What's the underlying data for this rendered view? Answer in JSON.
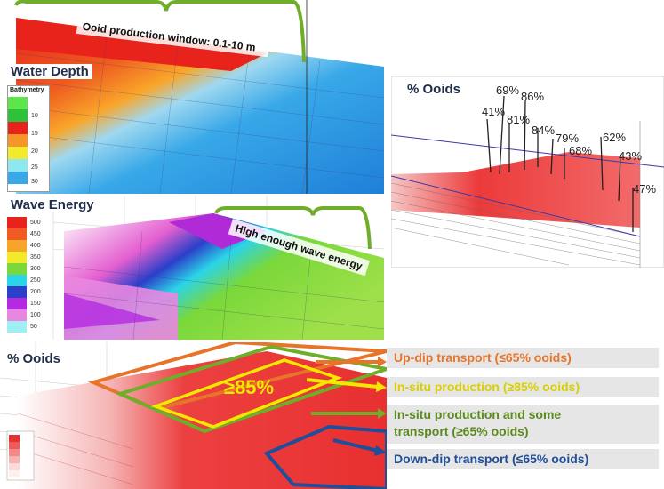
{
  "panels": {
    "water_depth": {
      "title": "Water Depth",
      "legend_title": "Bathymetry",
      "legend_ticks": [
        "10",
        "15",
        "20",
        "25",
        "30"
      ],
      "annotation": "Ooid production window: 0.1-10 m"
    },
    "wave_energy": {
      "title": "Wave Energy",
      "legend_values": [
        "500",
        "450",
        "400",
        "350",
        "300",
        "250",
        "200",
        "150",
        "100",
        "50"
      ],
      "annotation": "High enough wave energy"
    },
    "ooids_map": {
      "title": "% Ooids",
      "center_label": "≥85%"
    },
    "ooids_section": {
      "title": "% Ooids",
      "well_values": [
        "41%",
        "69%",
        "81%",
        "86%",
        "84%",
        "79%",
        "68%",
        "62%",
        "43%",
        "47%"
      ]
    }
  },
  "callouts": {
    "updip": "Up-dip transport (≤65% ooids)",
    "insitu": "In-situ production (≥85% ooids)",
    "insitu_transport_1": "In-situ production and some",
    "insitu_transport_2": "transport (≥65% ooids)",
    "downdip": "Down-dip transport (≤65% ooids)"
  },
  "colors": {
    "updip": "#e8742a",
    "insitu": "#f2e800",
    "insitu_transport": "#5a8a1e",
    "downdip": "#1f4e9a",
    "bracket": "#6fae2a"
  }
}
